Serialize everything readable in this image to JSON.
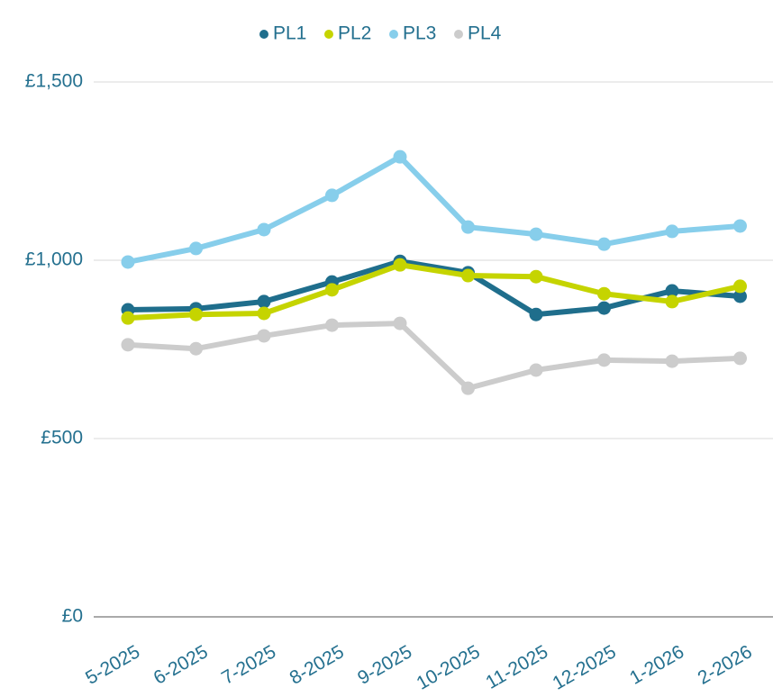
{
  "chart_data": {
    "type": "line",
    "categories": [
      "5-2025",
      "6-2025",
      "7-2025",
      "8-2025",
      "9-2025",
      "10-2025",
      "11-2025",
      "12-2025",
      "1-2026",
      "2-2026"
    ],
    "series": [
      {
        "name": "PL1",
        "color": "#1f6e8c",
        "values": [
          861,
          864,
          884,
          939,
          997,
          965,
          848,
          866,
          914,
          899
        ]
      },
      {
        "name": "PL2",
        "color": "#c5d400",
        "values": [
          838,
          848,
          851,
          917,
          987,
          957,
          954,
          906,
          884,
          927
        ]
      },
      {
        "name": "PL3",
        "color": "#87ceeb",
        "values": [
          995,
          1033,
          1086,
          1182,
          1290,
          1093,
          1073,
          1045,
          1081,
          1096
        ]
      },
      {
        "name": "PL4",
        "color": "#cccccc",
        "values": [
          763,
          752,
          788,
          818,
          823,
          641,
          692,
          720,
          717,
          725
        ]
      }
    ],
    "ylim": [
      0,
      1500
    ],
    "yticks": [
      {
        "value": 0,
        "label": "£0"
      },
      {
        "value": 500,
        "label": "£500"
      },
      {
        "value": 1000,
        "label": "£1,000"
      },
      {
        "value": 1500,
        "label": "£1,500"
      }
    ],
    "grid": true,
    "legend": "top"
  }
}
